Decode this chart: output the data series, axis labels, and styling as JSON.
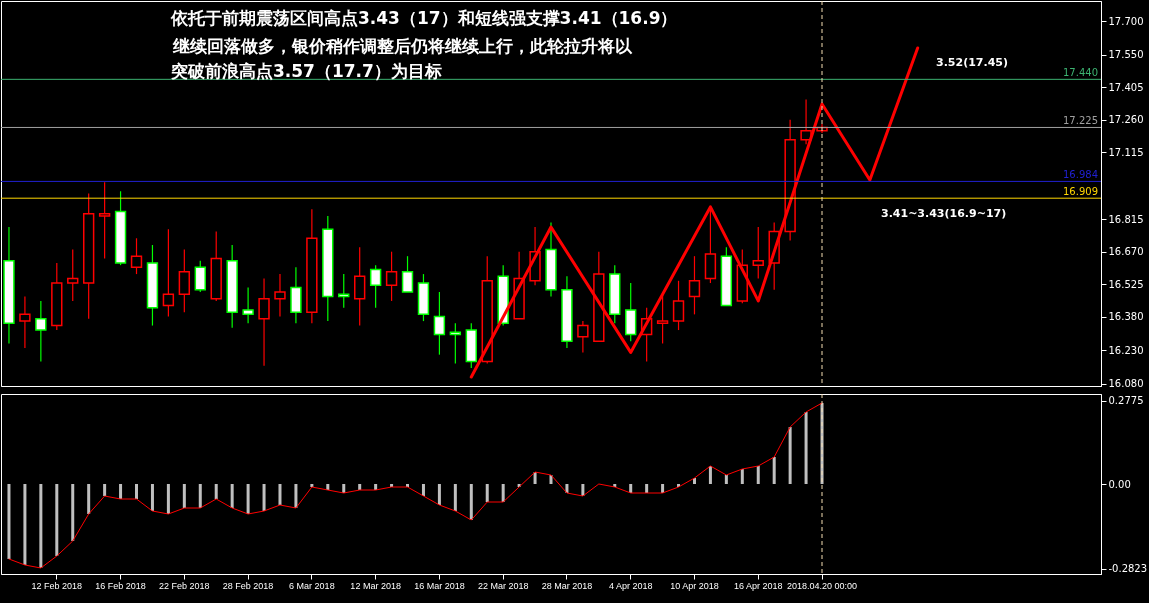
{
  "chart_data": [
    {
      "type": "candlestick",
      "tick_labels": "y",
      "categories": [
        null,
        null,
        null,
        "12 Feb 2018",
        null,
        null,
        null,
        "16 Feb 2018",
        null,
        null,
        null,
        "22 Feb 2018",
        null,
        null,
        null,
        "28 Feb 2018",
        null,
        null,
        null,
        "6 Mar 2018",
        null,
        null,
        null,
        "12 Mar 2018",
        null,
        null,
        null,
        "16 Mar 2018",
        null,
        null,
        null,
        "22 Mar 2018",
        null,
        null,
        null,
        "28 Mar 2018",
        null,
        null,
        null,
        "4 Apr 2018",
        null,
        null,
        null,
        "10 Apr 2018",
        null,
        null,
        null,
        "16 Apr 2018",
        null,
        null,
        null,
        "2018.04.20 00:00",
        null,
        null,
        null,
        null,
        null,
        null,
        null,
        null,
        null,
        null,
        null,
        null,
        null,
        null,
        null,
        null,
        null
      ],
      "ohlc": [
        [
          16.63,
          16.78,
          16.26,
          16.35
        ],
        [
          16.36,
          16.47,
          16.24,
          16.39
        ],
        [
          16.37,
          16.45,
          16.18,
          16.32
        ],
        [
          16.34,
          16.62,
          16.32,
          16.53
        ],
        [
          16.53,
          16.68,
          16.45,
          16.55
        ],
        [
          16.53,
          16.93,
          16.37,
          16.84
        ],
        [
          16.83,
          16.98,
          16.64,
          16.84
        ],
        [
          16.85,
          16.94,
          16.61,
          16.62
        ],
        [
          16.6,
          16.73,
          16.57,
          16.65
        ],
        [
          16.62,
          16.7,
          16.34,
          16.42
        ],
        [
          16.43,
          16.77,
          16.38,
          16.48
        ],
        [
          16.48,
          16.68,
          16.4,
          16.58
        ],
        [
          16.6,
          16.63,
          16.49,
          16.5
        ],
        [
          16.46,
          16.76,
          16.45,
          16.64
        ],
        [
          16.63,
          16.7,
          16.33,
          16.4
        ],
        [
          16.41,
          16.51,
          16.35,
          16.39
        ],
        [
          16.37,
          16.55,
          16.16,
          16.46
        ],
        [
          16.46,
          16.57,
          16.38,
          16.49
        ],
        [
          16.51,
          16.6,
          16.35,
          16.4
        ],
        [
          16.4,
          16.86,
          16.35,
          16.73
        ],
        [
          16.77,
          16.83,
          16.36,
          16.47
        ],
        [
          16.48,
          16.57,
          16.42,
          16.47
        ],
        [
          16.46,
          16.69,
          16.34,
          16.56
        ],
        [
          16.59,
          16.61,
          16.42,
          16.52
        ],
        [
          16.52,
          16.67,
          16.45,
          16.58
        ],
        [
          16.58,
          16.65,
          16.49,
          16.49
        ],
        [
          16.53,
          16.57,
          16.36,
          16.39
        ],
        [
          16.38,
          16.49,
          16.21,
          16.3
        ],
        [
          16.31,
          16.35,
          16.17,
          16.3
        ],
        [
          16.32,
          16.35,
          16.15,
          16.18
        ],
        [
          16.18,
          16.65,
          16.17,
          16.54
        ],
        [
          16.56,
          16.61,
          16.34,
          16.35
        ],
        [
          16.37,
          16.67,
          16.37,
          16.55
        ],
        [
          16.54,
          16.78,
          16.52,
          16.67
        ],
        [
          16.68,
          16.8,
          16.47,
          16.5
        ],
        [
          16.5,
          16.56,
          16.24,
          16.27
        ],
        [
          16.29,
          16.36,
          16.22,
          16.34
        ],
        [
          16.27,
          16.67,
          16.27,
          16.57
        ],
        [
          16.57,
          16.61,
          16.35,
          16.39
        ],
        [
          16.41,
          16.53,
          16.27,
          16.3
        ],
        [
          16.3,
          16.42,
          16.18,
          16.37
        ],
        [
          16.35,
          16.49,
          16.26,
          16.36
        ],
        [
          16.36,
          16.54,
          16.32,
          16.45
        ],
        [
          16.47,
          16.65,
          16.39,
          16.54
        ],
        [
          16.55,
          16.87,
          16.53,
          16.66
        ],
        [
          16.65,
          16.69,
          16.43,
          16.43
        ],
        [
          16.45,
          16.68,
          16.44,
          16.61
        ],
        [
          16.61,
          16.78,
          16.55,
          16.63
        ],
        [
          16.62,
          16.8,
          16.5,
          16.76
        ],
        [
          16.76,
          17.26,
          16.72,
          17.17
        ],
        [
          17.17,
          17.35,
          17.15,
          17.21
        ],
        [
          17.21,
          17.24,
          17.2,
          17.225
        ],
        null,
        null,
        null,
        null,
        null,
        null,
        null,
        null,
        null,
        null,
        null,
        null,
        null,
        null,
        null,
        null,
        null
      ],
      "colors": [
        "#00ff00",
        "#ff0000",
        "#00ff00",
        "#ff0000",
        "#ff0000",
        "#ff0000",
        "#ff0000",
        "#00ff00",
        "#ff0000",
        "#00ff00",
        "#ff0000",
        "#ff0000",
        "#00ff00",
        "#ff0000",
        "#00ff00",
        "#00ff00",
        "#ff0000",
        "#ff0000",
        "#00ff00",
        "#ff0000",
        "#00ff00",
        "#00ff00",
        "#ff0000",
        "#00ff00",
        "#ff0000",
        "#00ff00",
        "#00ff00",
        "#00ff00",
        "#00ff00",
        "#00ff00",
        "#ff0000",
        "#00ff00",
        "#ff0000",
        "#ff0000",
        "#00ff00",
        "#00ff00",
        "#ff0000",
        "#ff0000",
        "#00ff00",
        "#00ff00",
        "#ff0000",
        "#ff0000",
        "#ff0000",
        "#ff0000",
        "#ff0000",
        "#00ff00",
        "#ff0000",
        "#ff0000",
        "#ff0000",
        "#ff0000",
        "#ff0000",
        "#ff0000",
        null,
        null,
        null,
        null,
        null,
        null,
        null,
        null,
        null,
        null,
        null,
        null,
        null,
        null,
        null,
        null,
        null
      ],
      "series": [
        {
          "type": "line",
          "color": "#ff0000",
          "values": [
            null,
            null,
            null,
            null,
            null,
            null,
            null,
            null,
            null,
            null,
            null,
            null,
            null,
            null,
            null,
            null,
            null,
            null,
            null,
            null,
            null,
            null,
            null,
            null,
            null,
            null,
            null,
            null,
            null,
            16.11,
            null,
            null,
            null,
            null,
            16.78,
            null,
            null,
            null,
            null,
            16.22,
            null,
            null,
            null,
            null,
            16.87,
            null,
            null,
            16.45,
            null,
            null,
            null,
            17.33,
            null,
            null,
            16.99,
            null,
            null,
            17.58,
            null,
            null,
            null,
            null,
            null,
            null,
            null,
            null,
            null,
            null,
            null
          ]
        }
      ],
      "ylim": [
        16.07,
        17.79
      ],
      "yticks": [
        {
          "value": 16.08,
          "label": "16.080"
        },
        {
          "value": 16.23,
          "label": "16.230"
        },
        {
          "value": 16.38,
          "label": "16.380"
        },
        {
          "value": 16.525,
          "label": "16.525"
        },
        {
          "value": 16.67,
          "label": "16.670"
        },
        {
          "value": 16.815,
          "label": "16.815"
        },
        {
          "value": 17.115,
          "label": "17.115"
        },
        {
          "value": 17.26,
          "label": "17.260"
        },
        {
          "value": 17.405,
          "label": "17.405"
        },
        {
          "value": 17.55,
          "label": "17.550"
        },
        {
          "value": 17.7,
          "label": "17.700"
        }
      ],
      "ref_lines": [
        {
          "axis": "y",
          "value": 17.44,
          "label": "17.440",
          "color": "#3cb371"
        },
        {
          "axis": "y",
          "value": 17.225,
          "label": "17.225",
          "color": "#a0a0a0"
        },
        {
          "axis": "y",
          "value": 16.984,
          "label": "16.984",
          "color": "#2020d0"
        },
        {
          "axis": "y",
          "value": 16.909,
          "label": "16.909",
          "color": "#ffd700"
        },
        {
          "axis": "x",
          "value": "2018.04.20 00:00",
          "color": "#f5deb3",
          "line_style": "dashed"
        }
      ],
      "annotations": [
        "依托于前期震荡区间高点3.43（17）和短线强支撑3.41（16.9）",
        "继续回落做多，银价稍作调整后仍将继续上行，此轮拉升将以",
        "突破前浪高点3.57（17.7）为目标",
        "3.52(17.45)",
        "3.41~3.43(16.9~17)"
      ]
    },
    {
      "type": "bar",
      "categories": [
        null,
        null,
        null,
        "12 Feb 2018",
        null,
        null,
        null,
        "16 Feb 2018",
        null,
        null,
        null,
        "22 Feb 2018",
        null,
        null,
        null,
        "28 Feb 2018",
        null,
        null,
        null,
        "6 Mar 2018",
        null,
        null,
        null,
        "12 Mar 2018",
        null,
        null,
        null,
        "16 Mar 2018",
        null,
        null,
        null,
        "22 Mar 2018",
        null,
        null,
        null,
        "28 Mar 2018",
        null,
        null,
        null,
        "4 Apr 2018",
        null,
        null,
        null,
        "10 Apr 2018",
        null,
        null,
        null,
        "16 Apr 2018",
        null,
        null,
        null,
        "2018.04.20 00:00",
        null,
        null,
        null,
        null,
        null,
        null,
        null,
        null,
        null,
        null,
        null,
        null,
        null,
        null,
        null,
        null,
        null
      ],
      "series": [
        {
          "type": "bar",
          "color": "#c0c0c0",
          "values": [
            -0.25,
            -0.27,
            -0.28,
            -0.24,
            -0.19,
            -0.1,
            -0.04,
            -0.05,
            -0.05,
            -0.09,
            -0.1,
            -0.08,
            -0.08,
            -0.05,
            -0.08,
            -0.1,
            -0.09,
            -0.07,
            -0.08,
            -0.01,
            -0.02,
            -0.03,
            -0.02,
            -0.02,
            -0.01,
            -0.01,
            -0.04,
            -0.07,
            -0.09,
            -0.12,
            -0.06,
            -0.06,
            -0.01,
            0.04,
            0.03,
            -0.03,
            -0.04,
            0.0,
            -0.01,
            -0.03,
            -0.03,
            -0.03,
            -0.01,
            0.02,
            0.06,
            0.03,
            0.05,
            0.06,
            0.09,
            0.19,
            0.24,
            0.27,
            null,
            null,
            null,
            null,
            null,
            null,
            null,
            null,
            null,
            null,
            null,
            null,
            null,
            null,
            null,
            null,
            null
          ]
        },
        {
          "type": "line",
          "color": "#ff0000",
          "values": [
            -0.25,
            -0.27,
            -0.28,
            -0.24,
            -0.19,
            -0.1,
            -0.04,
            -0.05,
            -0.05,
            -0.09,
            -0.1,
            -0.08,
            -0.08,
            -0.05,
            -0.08,
            -0.1,
            -0.09,
            -0.07,
            -0.08,
            -0.01,
            -0.02,
            -0.03,
            -0.02,
            -0.02,
            -0.01,
            -0.01,
            -0.04,
            -0.07,
            -0.09,
            -0.12,
            -0.06,
            -0.06,
            -0.01,
            0.04,
            0.03,
            -0.03,
            -0.04,
            0.0,
            -0.01,
            -0.03,
            -0.03,
            -0.03,
            -0.01,
            0.02,
            0.06,
            0.03,
            0.05,
            0.06,
            0.09,
            0.19,
            0.24,
            0.27,
            null,
            null,
            null,
            null,
            null,
            null,
            null,
            null,
            null,
            null,
            null,
            null,
            null,
            null,
            null,
            null,
            null
          ]
        }
      ],
      "ylim": [
        -0.3,
        0.3
      ],
      "yticks": [
        0.2775,
        {
          "value": 0,
          "label": "0.00"
        },
        -0.2823
      ],
      "ref_lines": [
        {
          "axis": "x",
          "value": "2018.04.20 00:00",
          "color": "#f5deb3",
          "line_style": "dashed"
        }
      ]
    }
  ]
}
